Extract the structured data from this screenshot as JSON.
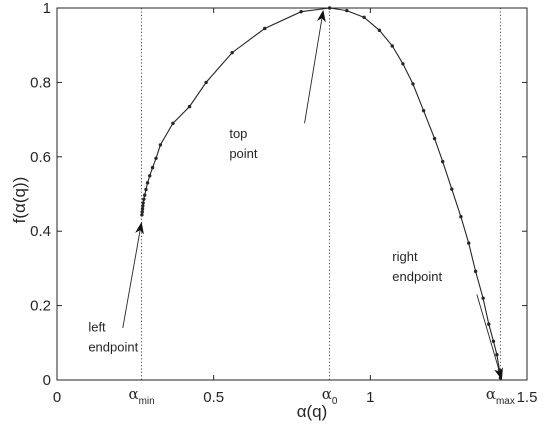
{
  "chart_data": {
    "type": "line",
    "title": "",
    "xlabel": "α(q)",
    "ylabel": "f(α(q))",
    "xlim": [
      0,
      1.5
    ],
    "ylim": [
      0,
      1
    ],
    "grid": false,
    "x_ticks": [
      {
        "value": 0,
        "label": "0"
      },
      {
        "value": 0.5,
        "label": "0.5"
      },
      {
        "value": 1,
        "label": "1"
      },
      {
        "value": 1.5,
        "label": "1.5"
      }
    ],
    "y_ticks": [
      {
        "value": 0,
        "label": "0"
      },
      {
        "value": 0.2,
        "label": "0.2"
      },
      {
        "value": 0.4,
        "label": "0.4"
      },
      {
        "value": 0.6,
        "label": "0.6"
      },
      {
        "value": 0.8,
        "label": "0.8"
      },
      {
        "value": 1,
        "label": "1"
      }
    ],
    "reference_lines": [
      {
        "x": 0.27,
        "base": "α",
        "sub": "min"
      },
      {
        "x": 0.87,
        "base": "α",
        "sub": "0"
      },
      {
        "x": 1.415,
        "base": "α",
        "sub": "max"
      }
    ],
    "series": [
      {
        "color": "#262626",
        "points": [
          [
            0.271,
            0.444
          ],
          [
            0.272,
            0.452
          ],
          [
            0.273,
            0.46
          ],
          [
            0.274,
            0.468
          ],
          [
            0.275,
            0.476
          ],
          [
            0.277,
            0.486
          ],
          [
            0.28,
            0.497
          ],
          [
            0.284,
            0.512
          ],
          [
            0.289,
            0.53
          ],
          [
            0.296,
            0.549
          ],
          [
            0.305,
            0.571
          ],
          [
            0.316,
            0.596
          ],
          [
            0.33,
            0.632
          ],
          [
            0.37,
            0.69
          ],
          [
            0.423,
            0.735
          ],
          [
            0.476,
            0.8
          ],
          [
            0.559,
            0.88
          ],
          [
            0.663,
            0.945
          ],
          [
            0.779,
            0.99
          ],
          [
            0.87,
            1.0
          ],
          [
            0.925,
            0.993
          ],
          [
            0.98,
            0.975
          ],
          [
            1.029,
            0.94
          ],
          [
            1.07,
            0.898
          ],
          [
            1.104,
            0.85
          ],
          [
            1.136,
            0.796
          ],
          [
            1.17,
            0.724
          ],
          [
            1.205,
            0.649
          ],
          [
            1.231,
            0.587
          ],
          [
            1.26,
            0.513
          ],
          [
            1.289,
            0.439
          ],
          [
            1.314,
            0.368
          ],
          [
            1.336,
            0.292
          ],
          [
            1.36,
            0.22
          ],
          [
            1.378,
            0.15
          ],
          [
            1.393,
            0.104
          ],
          [
            1.404,
            0.068
          ],
          [
            1.412,
            0.027
          ],
          [
            1.415,
            0.006
          ]
        ]
      }
    ],
    "annotations": [
      {
        "lines": [
          "top",
          "point"
        ],
        "text_at": [
          0.55,
          0.65
        ],
        "arrow_from": [
          0.79,
          0.69
        ],
        "arrow_to": [
          0.85,
          0.995
        ]
      },
      {
        "lines": [
          "left",
          "endpoint"
        ],
        "text_at": [
          0.1,
          0.13
        ],
        "arrow_from": [
          0.21,
          0.14
        ],
        "arrow_to": [
          0.27,
          0.425
        ]
      },
      {
        "lines": [
          "right",
          "endpoint"
        ],
        "text_at": [
          1.07,
          0.32
        ],
        "arrow_from": [
          1.34,
          0.23
        ],
        "arrow_to": [
          1.42,
          0.0
        ]
      }
    ]
  }
}
